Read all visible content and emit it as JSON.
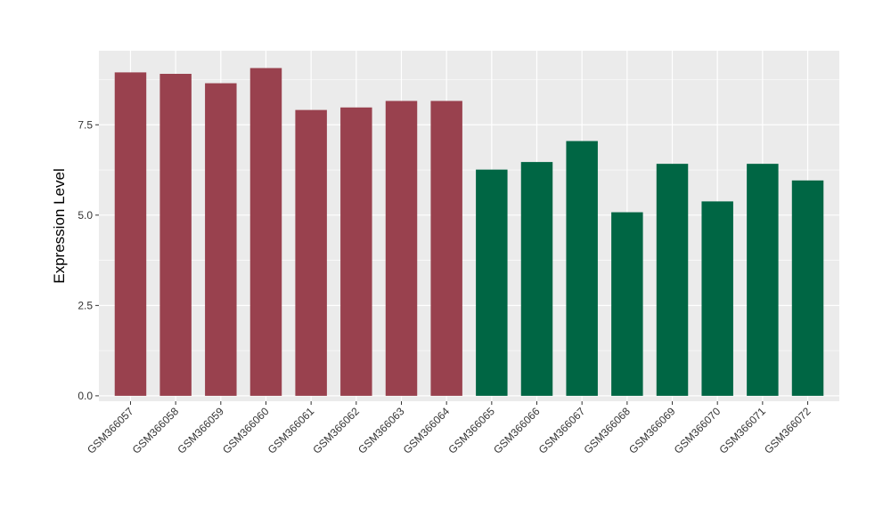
{
  "chart_data": {
    "type": "bar",
    "categories": [
      "GSM366057",
      "GSM366058",
      "GSM366059",
      "GSM366060",
      "GSM366061",
      "GSM366062",
      "GSM366063",
      "GSM366064",
      "GSM366065",
      "GSM366066",
      "GSM366067",
      "GSM366068",
      "GSM366069",
      "GSM366070",
      "GSM366071",
      "GSM366072"
    ],
    "values": [
      8.95,
      8.91,
      8.65,
      9.07,
      7.91,
      7.98,
      8.16,
      8.16,
      6.26,
      6.47,
      7.05,
      5.08,
      6.42,
      5.38,
      6.42,
      5.96
    ],
    "bar_colors": [
      "#99414E",
      "#99414E",
      "#99414E",
      "#99414E",
      "#99414E",
      "#99414E",
      "#99414E",
      "#99414E",
      "#006644",
      "#006644",
      "#006644",
      "#006644",
      "#006644",
      "#006644",
      "#006644",
      "#006644"
    ],
    "title": "",
    "xlabel": "",
    "ylabel": "Expression Level",
    "ylim": [
      -0.15,
      9.55
    ],
    "yticks": [
      0,
      2.5,
      5,
      7.5
    ],
    "ytick_labels": [
      "0.0",
      "2.5",
      "5.0",
      "7.5"
    ],
    "grid": true,
    "legend": "none",
    "panel_background": "#EBEBEB",
    "grid_color": "#FFFFFF"
  }
}
